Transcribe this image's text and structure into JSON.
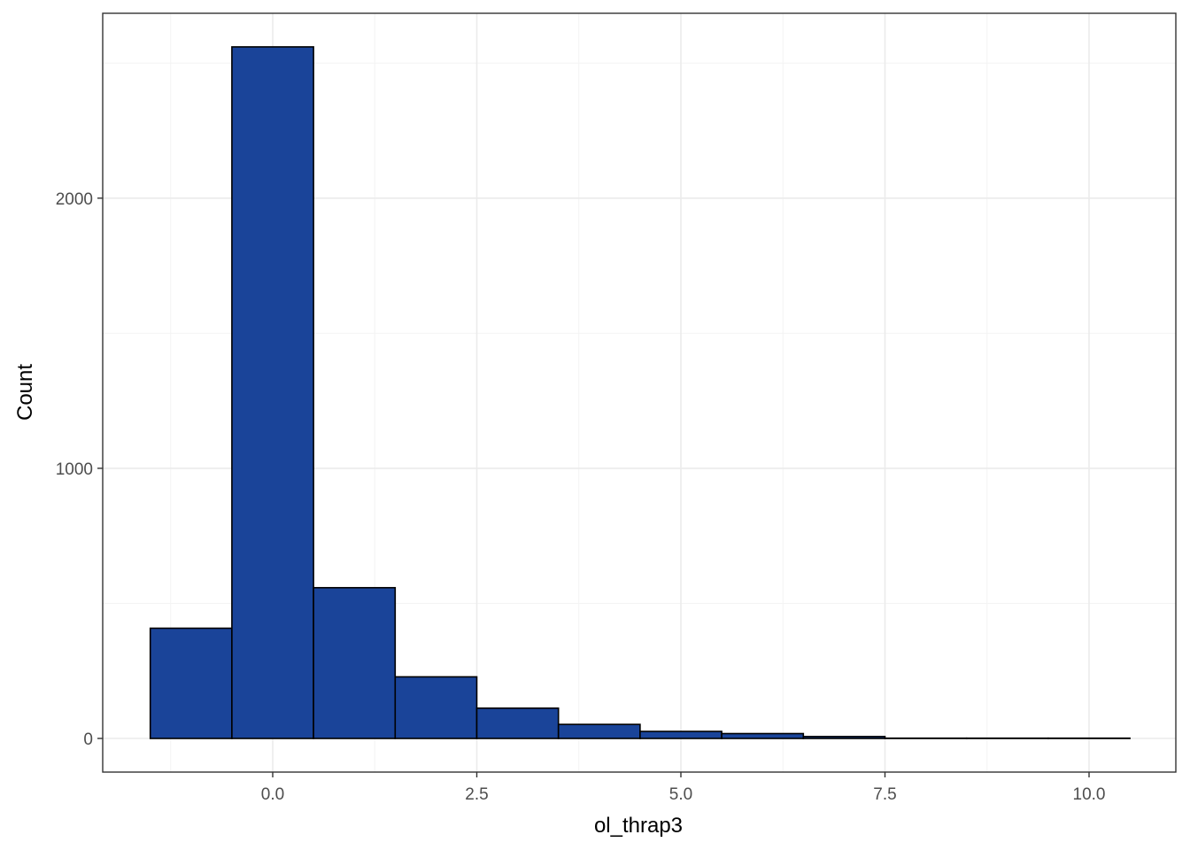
{
  "chart_data": {
    "type": "bar",
    "title": "",
    "xlabel": "ol_thrap3",
    "ylabel": "Count",
    "xlim": [
      -1.5,
      10.5
    ],
    "ylim": [
      0,
      2560
    ],
    "x_ticks": [
      0.0,
      2.5,
      5.0,
      7.5,
      10.0
    ],
    "x_tick_labels": [
      "0.0",
      "2.5",
      "5.0",
      "7.5",
      "10.0"
    ],
    "y_ticks": [
      0,
      1000,
      2000
    ],
    "y_tick_labels": [
      "0",
      "1000",
      "2000"
    ],
    "grid": true,
    "bins": [
      {
        "x0": -1.5,
        "x1": -0.5,
        "count": 408
      },
      {
        "x0": -0.5,
        "x1": 0.5,
        "count": 2560
      },
      {
        "x0": 0.5,
        "x1": 1.5,
        "count": 558
      },
      {
        "x0": 1.5,
        "x1": 2.5,
        "count": 228
      },
      {
        "x0": 2.5,
        "x1": 3.5,
        "count": 112
      },
      {
        "x0": 3.5,
        "x1": 4.5,
        "count": 52
      },
      {
        "x0": 4.5,
        "x1": 5.5,
        "count": 26
      },
      {
        "x0": 5.5,
        "x1": 6.5,
        "count": 18
      },
      {
        "x0": 6.5,
        "x1": 7.5,
        "count": 7
      },
      {
        "x0": 7.5,
        "x1": 8.5,
        "count": 1
      },
      {
        "x0": 8.5,
        "x1": 9.5,
        "count": 1
      },
      {
        "x0": 9.5,
        "x1": 10.5,
        "count": 1
      }
    ],
    "colors": {
      "bar_fill": "#1a4499",
      "bar_stroke": "#000000",
      "grid_major": "#ebebeb",
      "grid_minor": "#f4f4f4",
      "panel_border": "#333333"
    }
  }
}
